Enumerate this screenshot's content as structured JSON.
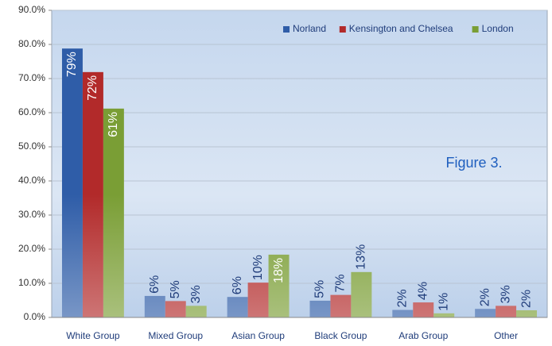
{
  "chart_data": {
    "type": "bar",
    "annotation": "Figure 3.",
    "categories": [
      "White Group",
      "Mixed Group",
      "Asian Group",
      "Black Group",
      "Arab Group",
      "Other"
    ],
    "series": [
      {
        "name": "Norland",
        "color": "#2f5da8",
        "values": [
          78.8,
          6.3,
          6.0,
          4.9,
          2.2,
          2.5
        ],
        "value_labels": [
          "79%",
          "6%",
          "6%",
          "5%",
          "2%",
          "2%"
        ]
      },
      {
        "name": "Kensington and Chelsea",
        "color": "#b22a2a",
        "values": [
          71.9,
          4.8,
          10.2,
          6.6,
          4.4,
          3.4
        ],
        "value_labels": [
          "72%",
          "5%",
          "10%",
          "7%",
          "4%",
          "3%"
        ]
      },
      {
        "name": "London",
        "color": "#7a9e35",
        "values": [
          61.2,
          3.4,
          18.4,
          13.3,
          1.2,
          2.1
        ],
        "value_labels": [
          "61%",
          "3%",
          "18%",
          "13%",
          "1%",
          "2%"
        ]
      }
    ],
    "ylim": [
      0,
      90
    ],
    "yticks": [
      {
        "value": 0,
        "label": "0.0%"
      },
      {
        "value": 10,
        "label": "10.0%"
      },
      {
        "value": 20,
        "label": "20.0%"
      },
      {
        "value": 30,
        "label": "30.0%"
      },
      {
        "value": 40,
        "label": "40.0%"
      },
      {
        "value": 50,
        "label": "50.0%"
      },
      {
        "value": 60,
        "label": "60.0%"
      },
      {
        "value": 70,
        "label": "70.0%"
      },
      {
        "value": 80,
        "label": "80.0%"
      },
      {
        "value": 90,
        "label": "90.0%"
      }
    ],
    "grid": true,
    "legend": "top-right"
  }
}
